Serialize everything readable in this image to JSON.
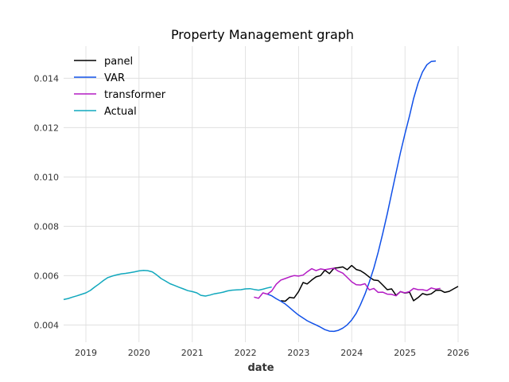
{
  "chart_data": {
    "type": "line",
    "title": "Property Management graph",
    "xlabel": "date",
    "ylabel": "",
    "xlim": [
      "2018-08-01",
      "2026-01-01"
    ],
    "ylim": [
      0.0033,
      0.0153
    ],
    "grid": true,
    "legend_position": "top-left",
    "x_ticks": [
      "2019",
      "2020",
      "2021",
      "2022",
      "2023",
      "2024",
      "2025",
      "2026"
    ],
    "y_ticks": [
      "0.004",
      "0.006",
      "0.008",
      "0.010",
      "0.012",
      "0.014"
    ],
    "series": [
      {
        "name": "panel",
        "color": "#000000",
        "points": [
          [
            "2022-09-01",
            0.00498
          ],
          [
            "2022-10-01",
            0.00496
          ],
          [
            "2022-11-01",
            0.00512
          ],
          [
            "2022-12-01",
            0.00509
          ],
          [
            "2023-01-01",
            0.00535
          ],
          [
            "2023-02-01",
            0.00572
          ],
          [
            "2023-03-01",
            0.00566
          ],
          [
            "2023-04-01",
            0.00582
          ],
          [
            "2023-05-01",
            0.00595
          ],
          [
            "2023-06-01",
            0.006
          ],
          [
            "2023-07-01",
            0.00622
          ],
          [
            "2023-08-01",
            0.00608
          ],
          [
            "2023-09-01",
            0.0063
          ],
          [
            "2023-10-01",
            0.00632
          ],
          [
            "2023-11-01",
            0.00635
          ],
          [
            "2023-12-01",
            0.00624
          ],
          [
            "2024-01-01",
            0.00641
          ],
          [
            "2024-02-01",
            0.00625
          ],
          [
            "2024-03-01",
            0.0062
          ],
          [
            "2024-04-01",
            0.00608
          ],
          [
            "2024-05-01",
            0.00594
          ],
          [
            "2024-06-01",
            0.00582
          ],
          [
            "2024-07-01",
            0.0058
          ],
          [
            "2024-08-01",
            0.00562
          ],
          [
            "2024-09-01",
            0.00543
          ],
          [
            "2024-10-01",
            0.00546
          ],
          [
            "2024-11-01",
            0.0052
          ],
          [
            "2024-12-01",
            0.00535
          ],
          [
            "2025-01-01",
            0.00529
          ],
          [
            "2025-02-01",
            0.00533
          ],
          [
            "2025-03-01",
            0.00498
          ],
          [
            "2025-04-01",
            0.00511
          ],
          [
            "2025-05-01",
            0.00527
          ],
          [
            "2025-06-01",
            0.00522
          ],
          [
            "2025-07-01",
            0.00526
          ],
          [
            "2025-08-01",
            0.0054
          ],
          [
            "2025-09-01",
            0.00541
          ],
          [
            "2025-10-01",
            0.00532
          ],
          [
            "2025-11-01",
            0.00536
          ],
          [
            "2025-12-01",
            0.00546
          ],
          [
            "2026-01-01",
            0.00556
          ]
        ]
      },
      {
        "name": "VAR",
        "color": "#1050e8",
        "points": [
          [
            "2022-06-01",
            0.00525
          ],
          [
            "2022-07-01",
            0.00518
          ],
          [
            "2022-08-01",
            0.00506
          ],
          [
            "2022-09-01",
            0.00496
          ],
          [
            "2022-10-01",
            0.00485
          ],
          [
            "2022-11-01",
            0.0047
          ],
          [
            "2022-12-01",
            0.00455
          ],
          [
            "2023-01-01",
            0.0044
          ],
          [
            "2023-02-01",
            0.00428
          ],
          [
            "2023-03-01",
            0.00417
          ],
          [
            "2023-04-01",
            0.00408
          ],
          [
            "2023-05-01",
            0.004
          ],
          [
            "2023-06-01",
            0.00391
          ],
          [
            "2023-07-01",
            0.00381
          ],
          [
            "2023-08-01",
            0.00375
          ],
          [
            "2023-09-01",
            0.00374
          ],
          [
            "2023-10-01",
            0.00378
          ],
          [
            "2023-11-01",
            0.00387
          ],
          [
            "2023-12-01",
            0.004
          ],
          [
            "2024-01-01",
            0.0042
          ],
          [
            "2024-02-01",
            0.00447
          ],
          [
            "2024-03-01",
            0.00482
          ],
          [
            "2024-04-01",
            0.00525
          ],
          [
            "2024-05-01",
            0.00574
          ],
          [
            "2024-06-01",
            0.0063
          ],
          [
            "2024-07-01",
            0.00695
          ],
          [
            "2024-08-01",
            0.0077
          ],
          [
            "2024-09-01",
            0.0085
          ],
          [
            "2024-10-01",
            0.00933
          ],
          [
            "2024-11-01",
            0.01017
          ],
          [
            "2024-12-01",
            0.01098
          ],
          [
            "2025-01-01",
            0.01175
          ],
          [
            "2025-02-01",
            0.01247
          ],
          [
            "2025-03-01",
            0.01317
          ],
          [
            "2025-04-01",
            0.0138
          ],
          [
            "2025-05-01",
            0.01425
          ],
          [
            "2025-06-01",
            0.01455
          ],
          [
            "2025-07-01",
            0.01468
          ],
          [
            "2025-08-01",
            0.0147
          ]
        ]
      },
      {
        "name": "transformer",
        "color": "#b31bc4",
        "points": [
          [
            "2022-03-01",
            0.00513
          ],
          [
            "2022-04-01",
            0.00508
          ],
          [
            "2022-05-01",
            0.0053
          ],
          [
            "2022-06-01",
            0.00525
          ],
          [
            "2022-07-01",
            0.00538
          ],
          [
            "2022-08-01",
            0.00565
          ],
          [
            "2022-09-01",
            0.00582
          ],
          [
            "2022-10-01",
            0.00588
          ],
          [
            "2022-11-01",
            0.00595
          ],
          [
            "2022-12-01",
            0.006
          ],
          [
            "2023-01-01",
            0.00598
          ],
          [
            "2023-02-01",
            0.00602
          ],
          [
            "2023-03-01",
            0.00615
          ],
          [
            "2023-04-01",
            0.00628
          ],
          [
            "2023-05-01",
            0.0062
          ],
          [
            "2023-06-01",
            0.00627
          ],
          [
            "2023-07-01",
            0.00624
          ],
          [
            "2023-08-01",
            0.00627
          ],
          [
            "2023-09-01",
            0.0063
          ],
          [
            "2023-10-01",
            0.00618
          ],
          [
            "2023-11-01",
            0.0061
          ],
          [
            "2023-12-01",
            0.00593
          ],
          [
            "2024-01-01",
            0.00575
          ],
          [
            "2024-02-01",
            0.00563
          ],
          [
            "2024-03-01",
            0.00562
          ],
          [
            "2024-04-01",
            0.00567
          ],
          [
            "2024-05-01",
            0.00542
          ],
          [
            "2024-06-01",
            0.00548
          ],
          [
            "2024-07-01",
            0.00532
          ],
          [
            "2024-08-01",
            0.00533
          ],
          [
            "2024-09-01",
            0.00525
          ],
          [
            "2024-10-01",
            0.00524
          ],
          [
            "2024-11-01",
            0.00518
          ],
          [
            "2024-12-01",
            0.00535
          ],
          [
            "2025-01-01",
            0.0053
          ],
          [
            "2025-02-01",
            0.00535
          ],
          [
            "2025-03-01",
            0.00548
          ],
          [
            "2025-04-01",
            0.00543
          ],
          [
            "2025-05-01",
            0.00543
          ],
          [
            "2025-06-01",
            0.00539
          ],
          [
            "2025-07-01",
            0.0055
          ],
          [
            "2025-08-01",
            0.00545
          ],
          [
            "2025-09-01",
            0.00548
          ]
        ]
      },
      {
        "name": "Actual",
        "color": "#11a8bd",
        "points": [
          [
            "2018-08-01",
            0.00503
          ],
          [
            "2018-09-01",
            0.00507
          ],
          [
            "2018-10-01",
            0.00513
          ],
          [
            "2018-11-01",
            0.00518
          ],
          [
            "2018-12-01",
            0.00524
          ],
          [
            "2019-01-01",
            0.0053
          ],
          [
            "2019-02-01",
            0.0054
          ],
          [
            "2019-03-01",
            0.00553
          ],
          [
            "2019-04-01",
            0.00566
          ],
          [
            "2019-05-01",
            0.0058
          ],
          [
            "2019-06-01",
            0.00592
          ],
          [
            "2019-07-01",
            0.00598
          ],
          [
            "2019-08-01",
            0.00603
          ],
          [
            "2019-09-01",
            0.00607
          ],
          [
            "2019-10-01",
            0.00609
          ],
          [
            "2019-11-01",
            0.00612
          ],
          [
            "2019-12-01",
            0.00615
          ],
          [
            "2020-01-01",
            0.00619
          ],
          [
            "2020-02-01",
            0.00621
          ],
          [
            "2020-03-01",
            0.0062
          ],
          [
            "2020-04-01",
            0.00615
          ],
          [
            "2020-05-01",
            0.00603
          ],
          [
            "2020-06-01",
            0.00588
          ],
          [
            "2020-07-01",
            0.00578
          ],
          [
            "2020-08-01",
            0.00567
          ],
          [
            "2020-09-01",
            0.0056
          ],
          [
            "2020-10-01",
            0.00553
          ],
          [
            "2020-11-01",
            0.00546
          ],
          [
            "2020-12-01",
            0.00539
          ],
          [
            "2021-01-01",
            0.00535
          ],
          [
            "2021-02-01",
            0.0053
          ],
          [
            "2021-03-01",
            0.0052
          ],
          [
            "2021-04-01",
            0.00517
          ],
          [
            "2021-05-01",
            0.00521
          ],
          [
            "2021-06-01",
            0.00526
          ],
          [
            "2021-07-01",
            0.00529
          ],
          [
            "2021-08-01",
            0.00533
          ],
          [
            "2021-09-01",
            0.00538
          ],
          [
            "2021-10-01",
            0.00541
          ],
          [
            "2021-11-01",
            0.00542
          ],
          [
            "2021-12-01",
            0.00543
          ],
          [
            "2022-01-01",
            0.00546
          ],
          [
            "2022-02-01",
            0.00547
          ],
          [
            "2022-03-01",
            0.00544
          ],
          [
            "2022-04-01",
            0.00541
          ],
          [
            "2022-05-01",
            0.00545
          ],
          [
            "2022-06-01",
            0.0055
          ],
          [
            "2022-07-01",
            0.00554
          ]
        ]
      }
    ]
  }
}
